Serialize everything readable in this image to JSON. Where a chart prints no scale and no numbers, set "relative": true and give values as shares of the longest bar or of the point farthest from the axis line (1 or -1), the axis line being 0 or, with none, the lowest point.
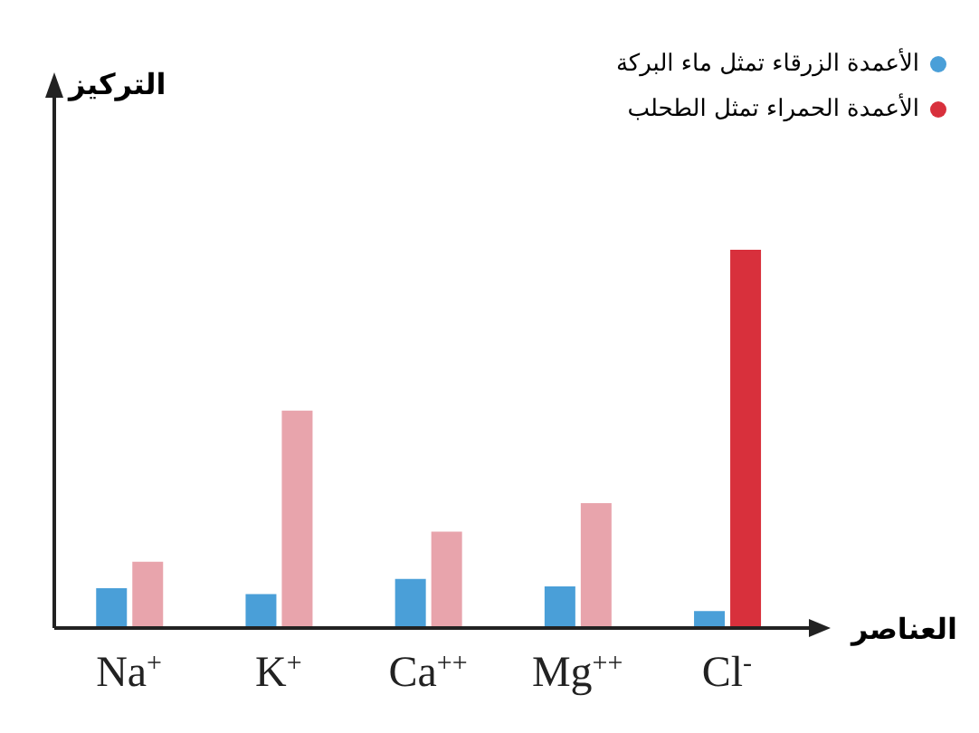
{
  "chart_data": {
    "type": "bar",
    "relative": true,
    "xlabel": "العناصر",
    "annotations": [
      "التركيز"
    ],
    "categories": [
      "Na$^{+}$",
      "K$^{+}$",
      "Ca$^{++}$",
      "Mg$^{++}$",
      "Cl$^{-}$"
    ],
    "series": [
      {
        "name": "الأعمدة الزرقاء تمثل ماء البركة",
        "color": "#4a9fd8",
        "values": [
          0.105,
          0.09,
          0.13,
          0.11,
          0.045
        ]
      },
      {
        "name": "الأعمدة الحمراء تمثل الطحلب",
        "color": "#d8303c",
        "colors": [
          "#e8a4ac",
          "#e8a4ac",
          "#e8a4ac",
          "#e8a4ac",
          "#d8303c"
        ],
        "values": [
          0.175,
          0.575,
          0.255,
          0.33,
          1
        ]
      }
    ],
    "legend": "top right"
  }
}
